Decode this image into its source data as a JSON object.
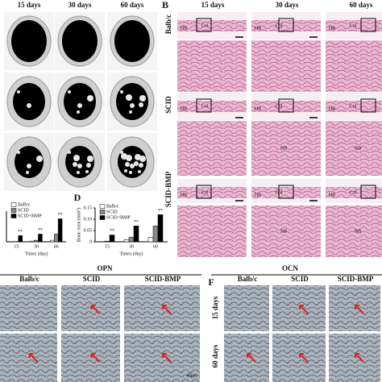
{
  "panel_a": {
    "columns": [
      "15 days",
      "30 days",
      "60 days"
    ]
  },
  "panel_b": {
    "label": "B",
    "columns": [
      "15 days",
      "30 days",
      "60 days"
    ],
    "rows": [
      "Balb/c",
      "SCID",
      "SCID-BMP"
    ],
    "annotations": [
      "Col",
      "HB",
      "NB"
    ]
  },
  "chart_data": [
    {
      "type": "bar",
      "x_label": "Times (day)",
      "categories": [
        "15",
        "30",
        "60"
      ],
      "series": [
        {
          "name": "Balb/c",
          "color": "#ffffff",
          "values": [
            0,
            0.5,
            1
          ]
        },
        {
          "name": "SCID",
          "color": "#888888",
          "values": [
            0,
            1,
            5
          ]
        },
        {
          "name": "SCID+BMP",
          "color": "#000000",
          "values": [
            4,
            5,
            15
          ]
        }
      ],
      "ylim": [
        0,
        20
      ],
      "significance": [
        "**",
        "**",
        "**"
      ]
    },
    {
      "type": "bar",
      "label": "D",
      "y_label": "Bone Area (mm²)",
      "x_label": "Times (day)",
      "categories": [
        "15",
        "30",
        "60"
      ],
      "series": [
        {
          "name": "Balb/c",
          "color": "#ffffff",
          "values": [
            0,
            0.01,
            0.02
          ]
        },
        {
          "name": "SCID",
          "color": "#888888",
          "values": [
            0.003,
            0.02,
            0.07
          ]
        },
        {
          "name": "SCID+BMP",
          "color": "#000000",
          "values": [
            0.03,
            0.07,
            0.12
          ]
        }
      ],
      "ylim": [
        0,
        0.15
      ],
      "yticks": [
        0,
        0.05,
        {
          "value": 0.1,
          "label": "0.10"
        },
        0.15
      ],
      "significance": [
        "**",
        "**",
        "**"
      ]
    }
  ],
  "panel_e": {
    "title": "OPN",
    "columns": [
      "Balb/c",
      "SCID",
      "SCID-BMP"
    ],
    "scale": "40μm"
  },
  "panel_f": {
    "label": "F",
    "title": "OCN",
    "columns": [
      "Balb/c",
      "SCID",
      "SCID-BMP"
    ],
    "rows": [
      "15 days",
      "60 days"
    ]
  }
}
